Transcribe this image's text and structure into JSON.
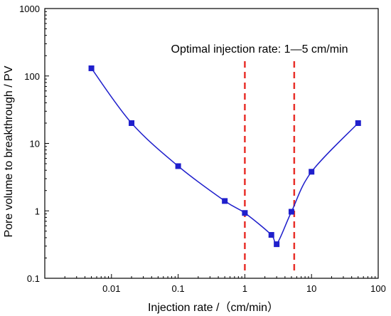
{
  "chart_data": {
    "type": "scatter",
    "title": "",
    "xlabel": "Injection rate /（cm/min）",
    "ylabel": "Pore volume to breakthrough / PV",
    "xscale": "log",
    "yscale": "log",
    "xlim": [
      0.001,
      100
    ],
    "ylim": [
      0.1,
      1000
    ],
    "x_tick_labels": [
      "0.01",
      "0.1",
      "1",
      "10",
      "100"
    ],
    "y_tick_labels": [
      "0.1",
      "1",
      "10",
      "100",
      "1000"
    ],
    "grid": false,
    "legend": "none",
    "series": [
      {
        "color": "#1f1fcc",
        "marker": "square",
        "line": "smooth",
        "points": [
          {
            "x": 0.005,
            "y": 130
          },
          {
            "x": 0.02,
            "y": 20
          },
          {
            "x": 0.1,
            "y": 4.6
          },
          {
            "x": 0.5,
            "y": 1.4
          },
          {
            "x": 1,
            "y": 0.93
          },
          {
            "x": 2.5,
            "y": 0.44
          },
          {
            "x": 3,
            "y": 0.32
          },
          {
            "x": 5,
            "y": 0.97
          },
          {
            "x": 10,
            "y": 3.8
          },
          {
            "x": 50,
            "y": 20
          }
        ]
      }
    ],
    "reference_lines": [
      {
        "x": 1,
        "color": "#e8302a",
        "style": "dashed"
      },
      {
        "x": 5.5,
        "color": "#e8302a",
        "style": "dashed"
      }
    ],
    "annotation": "Optimal injection rate: 1—5 cm/min"
  }
}
